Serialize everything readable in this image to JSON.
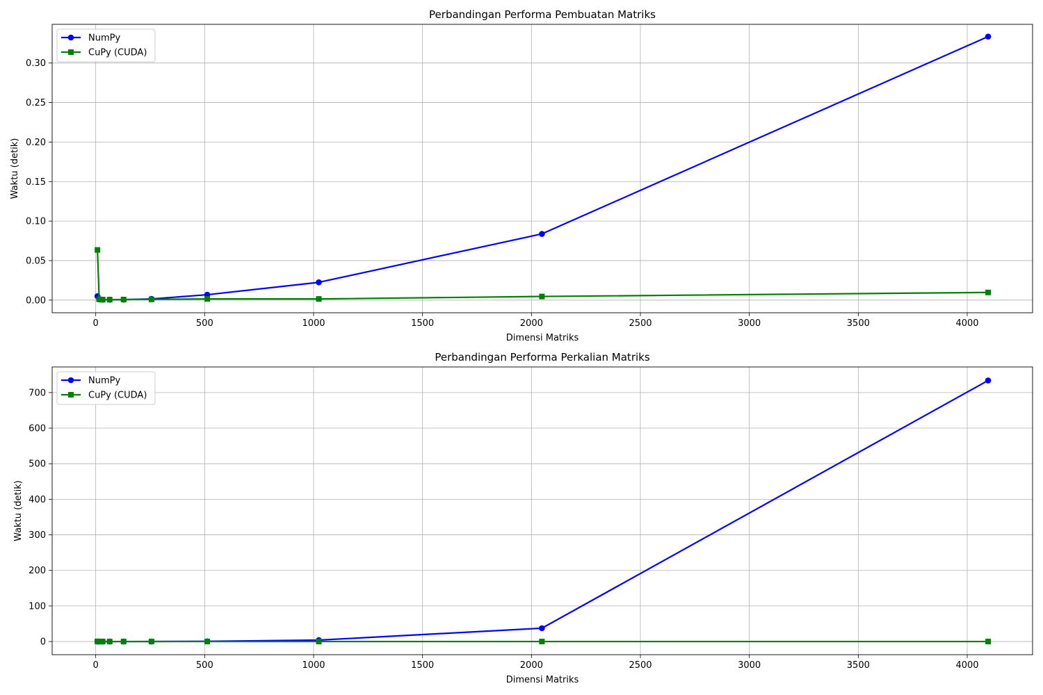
{
  "chart_data": [
    {
      "type": "line",
      "title": "Perbandingan Performa Pembuatan Matriks",
      "xlabel": "Dimensi Matriks",
      "ylabel": "Waktu (detik)",
      "xlim": [
        -200,
        4300
      ],
      "ylim": [
        -0.016,
        0.349
      ],
      "xticks": [
        0,
        500,
        1000,
        1500,
        2000,
        2500,
        3000,
        3500,
        4000
      ],
      "yticks": [
        0.0,
        0.05,
        0.1,
        0.15,
        0.2,
        0.25,
        0.3
      ],
      "ytick_labels": [
        "0.00",
        "0.05",
        "0.10",
        "0.15",
        "0.20",
        "0.25",
        "0.30"
      ],
      "grid": true,
      "legend_position": "upper-left",
      "x": [
        8,
        16,
        32,
        64,
        128,
        256,
        512,
        1024,
        2048,
        4096
      ],
      "series": [
        {
          "name": "NumPy",
          "color": "#0000ff",
          "marker": "circle",
          "values": [
            0.005,
            0.001,
            0.0005,
            0.0005,
            0.0006,
            0.0015,
            0.0068,
            0.0225,
            0.0838,
            0.3335
          ]
        },
        {
          "name": "CuPy (CUDA)",
          "color": "#008000",
          "marker": "square",
          "values": [
            0.0635,
            0.001,
            0.0006,
            0.0006,
            0.0007,
            0.0009,
            0.0015,
            0.0015,
            0.0046,
            0.0097
          ]
        }
      ]
    },
    {
      "type": "line",
      "title": "Perbandingan Performa Perkalian Matriks",
      "xlabel": "Dimensi Matriks",
      "ylabel": "Waktu (detik)",
      "xlim": [
        -200,
        4300
      ],
      "ylim": [
        -37,
        772
      ],
      "xticks": [
        0,
        500,
        1000,
        1500,
        2000,
        2500,
        3000,
        3500,
        4000
      ],
      "yticks": [
        0,
        100,
        200,
        300,
        400,
        500,
        600,
        700
      ],
      "ytick_labels": [
        "0",
        "100",
        "200",
        "300",
        "400",
        "500",
        "600",
        "700"
      ],
      "grid": true,
      "legend_position": "upper-left",
      "x": [
        8,
        16,
        32,
        64,
        128,
        256,
        512,
        1024,
        2048,
        4096
      ],
      "series": [
        {
          "name": "NumPy",
          "color": "#0000ff",
          "marker": "circle",
          "values": [
            0.0,
            0.0,
            0.0,
            0.0,
            0.0,
            0.1,
            0.6,
            4.0,
            37.5,
            734.0
          ]
        },
        {
          "name": "CuPy (CUDA)",
          "color": "#008000",
          "marker": "square",
          "values": [
            0.3,
            0.0,
            0.0,
            0.0,
            0.0,
            0.0,
            0.0,
            0.0,
            0.0,
            0.0
          ]
        }
      ]
    }
  ]
}
